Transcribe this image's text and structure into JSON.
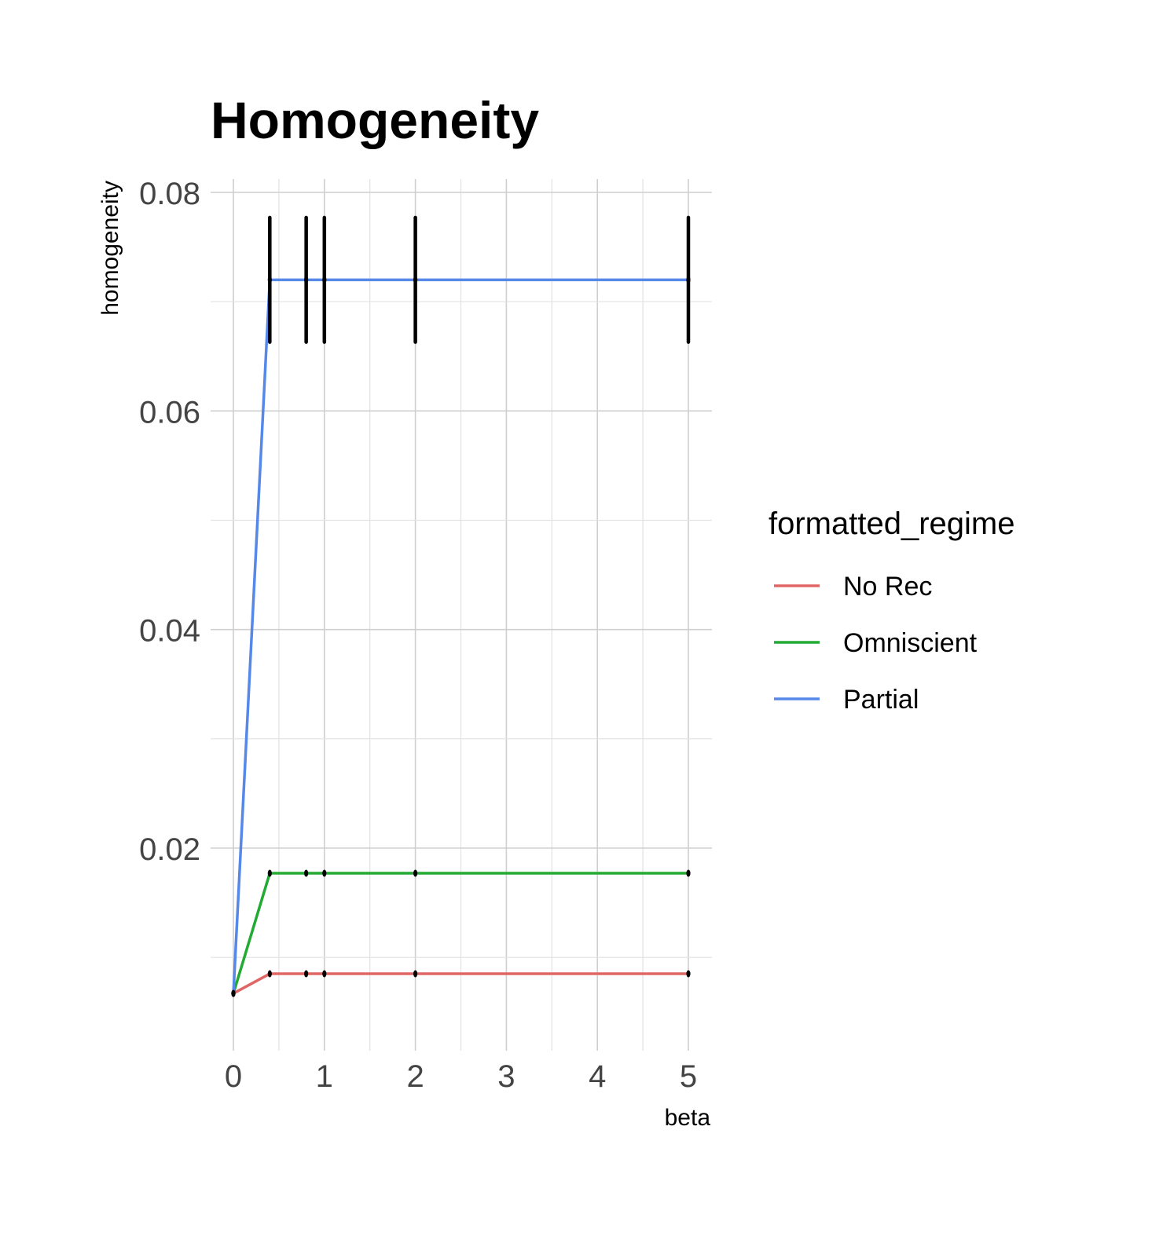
{
  "chart_data": {
    "type": "line",
    "title": "Homogeneity",
    "xlabel": "beta",
    "ylabel": "homogeneity",
    "xlim": [
      0,
      5
    ],
    "ylim": [
      0,
      0.08
    ],
    "x_ticks": [
      0,
      1,
      2,
      3,
      4,
      5
    ],
    "x_tick_labels": [
      "0",
      "1",
      "2",
      "3",
      "4",
      "5"
    ],
    "y_ticks": [
      0.02,
      0.04,
      0.06,
      0.08
    ],
    "y_tick_labels": [
      "0.02",
      "0.04",
      "0.06",
      "0.08"
    ],
    "grid": true,
    "legend": {
      "title": "formatted_regime",
      "position": "right"
    },
    "x": [
      0,
      0.4,
      0.8,
      1,
      2,
      5
    ],
    "series": [
      {
        "name": "No Rec",
        "color": "#e06666",
        "values": [
          0.0067,
          0.0085,
          0.0085,
          0.0085,
          0.0085,
          0.0085
        ],
        "error": [
          0,
          0,
          0,
          0,
          0,
          0
        ]
      },
      {
        "name": "Omniscient",
        "color": "#22aa33",
        "values": [
          0.0067,
          0.0177,
          0.0177,
          0.0177,
          0.0177,
          0.0177
        ],
        "error": [
          0,
          0,
          0,
          0,
          0,
          0
        ]
      },
      {
        "name": "Partial",
        "color": "#5588e8",
        "values": [
          0.0067,
          0.072,
          0.072,
          0.072,
          0.072,
          0.072
        ],
        "error": [
          0,
          0.0057,
          0.0057,
          0.0057,
          0.0057,
          0.0057
        ]
      }
    ]
  }
}
